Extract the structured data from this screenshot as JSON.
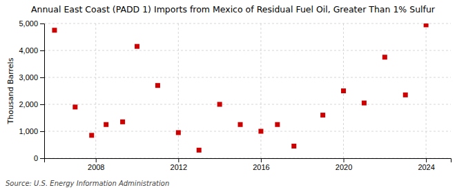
{
  "chart_data": {
    "type": "scatter",
    "title": "Annual East Coast (PADD 1) Imports from Mexico of Residual Fuel Oil, Greater Than 1% Sulfur",
    "ylabel": "Thousand Barrels",
    "annotations": [
      "Source: U.S. Energy Information Administration"
    ],
    "x": [
      2006,
      2007,
      2007.8,
      2008.5,
      2009.3,
      2010,
      2011,
      2012,
      2013,
      2014,
      2015,
      2016,
      2016.8,
      2017.6,
      2019,
      2020,
      2021,
      2022,
      2023,
      2024
    ],
    "values": [
      4750,
      1900,
      850,
      1250,
      1350,
      4150,
      2700,
      950,
      300,
      2000,
      1250,
      1000,
      1250,
      450,
      1600,
      2500,
      2050,
      3750,
      2350,
      4950
    ],
    "color": "#cc0000",
    "marker": "square",
    "xlim": [
      2005.5,
      2025.2
    ],
    "xticks": [
      2008,
      2012,
      2016,
      2020,
      2024
    ],
    "ylim": [
      0,
      5000
    ],
    "yticks": [
      0,
      {
        "value": 1000,
        "label": "1,000"
      },
      {
        "value": 2000,
        "label": "2,000"
      },
      {
        "value": 3000,
        "label": "3,000"
      },
      {
        "value": 4000,
        "label": "4,000"
      },
      {
        "value": 5000,
        "label": "5,000"
      }
    ],
    "grid": true
  }
}
